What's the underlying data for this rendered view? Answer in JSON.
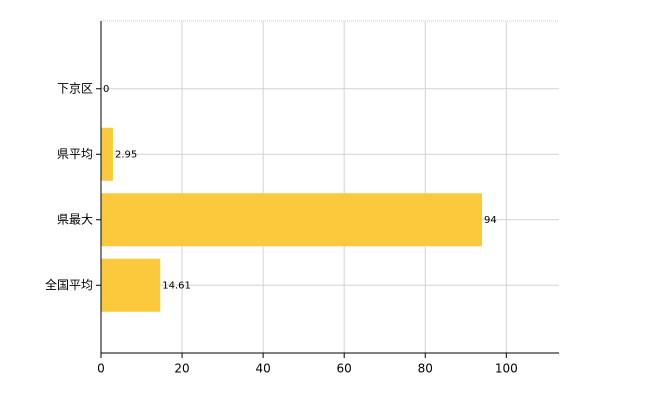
{
  "chart_data": {
    "type": "bar",
    "orientation": "horizontal",
    "categories": [
      "下京区",
      "県平均",
      "県最大",
      "全国平均"
    ],
    "values": [
      0,
      2.95,
      94,
      14.61
    ],
    "color": "#fbc93b",
    "xlim": [
      0,
      113
    ],
    "xticks": [
      0,
      20,
      40,
      60,
      80,
      100
    ],
    "grid": true
  }
}
